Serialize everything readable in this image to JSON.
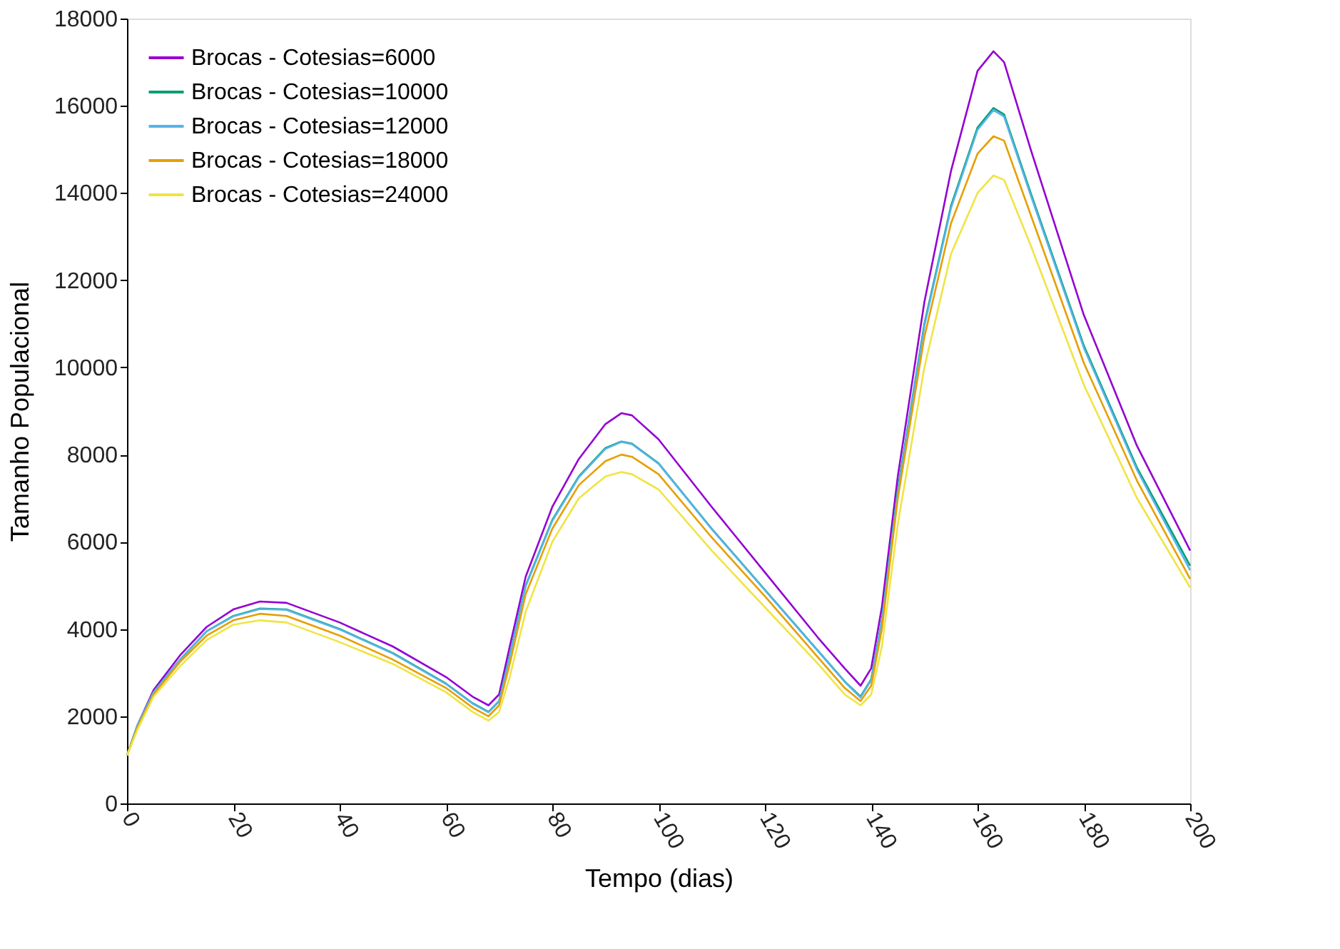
{
  "chart_data": {
    "type": "line",
    "xlabel": "Tempo (dias)",
    "ylabel": "Tamanho Populacional",
    "x": [
      0,
      2,
      5,
      10,
      15,
      20,
      25,
      30,
      40,
      50,
      60,
      65,
      68,
      70,
      72,
      75,
      80,
      85,
      90,
      93,
      95,
      100,
      110,
      120,
      130,
      135,
      138,
      140,
      142,
      145,
      150,
      155,
      160,
      163,
      165,
      170,
      180,
      190,
      200
    ],
    "series": [
      {
        "name": "Brocas - Cotesias=6000",
        "color": "#9400d3",
        "values": [
          1100,
          1800,
          2600,
          3400,
          4050,
          4450,
          4630,
          4600,
          4150,
          3600,
          2900,
          2450,
          2250,
          2500,
          3600,
          5200,
          6800,
          7900,
          8700,
          8950,
          8900,
          8350,
          6800,
          5300,
          3800,
          3100,
          2700,
          3100,
          4500,
          7500,
          11500,
          14500,
          16800,
          17250,
          17000,
          15000,
          11200,
          8200,
          5800
        ]
      },
      {
        "name": "Brocas - Cotesias=10000",
        "color": "#009e73",
        "values": [
          1100,
          1800,
          2550,
          3300,
          3950,
          4300,
          4470,
          4450,
          4000,
          3450,
          2750,
          2300,
          2100,
          2350,
          3400,
          5000,
          6500,
          7500,
          8150,
          8300,
          8250,
          7800,
          6300,
          4900,
          3500,
          2800,
          2450,
          2850,
          4200,
          7200,
          11000,
          13700,
          15500,
          15950,
          15800,
          14000,
          10500,
          7700,
          5450
        ]
      },
      {
        "name": "Brocas - Cotesias=12000",
        "color": "#56b4e9",
        "values": [
          1100,
          1800,
          2550,
          3300,
          3950,
          4290,
          4460,
          4440,
          3990,
          3440,
          2740,
          2290,
          2090,
          2340,
          3380,
          4980,
          6480,
          7480,
          8130,
          8290,
          8240,
          7790,
          6290,
          4890,
          3490,
          2790,
          2430,
          2830,
          4180,
          7150,
          10950,
          13650,
          15450,
          15900,
          15750,
          13950,
          10450,
          7650,
          5350
        ]
      },
      {
        "name": "Brocas - Cotesias=18000",
        "color": "#e69f00",
        "values": [
          1100,
          1750,
          2500,
          3250,
          3850,
          4200,
          4350,
          4300,
          3850,
          3300,
          2650,
          2200,
          2000,
          2250,
          3200,
          4800,
          6300,
          7300,
          7850,
          8000,
          7950,
          7550,
          6100,
          4750,
          3350,
          2650,
          2350,
          2700,
          4000,
          7000,
          10700,
          13300,
          14900,
          15300,
          15200,
          13500,
          10100,
          7400,
          5150
        ]
      },
      {
        "name": "Brocas - Cotesias=24000",
        "color": "#f0e442",
        "values": [
          1100,
          1700,
          2450,
          3150,
          3750,
          4100,
          4200,
          4150,
          3700,
          3200,
          2550,
          2100,
          1900,
          2100,
          2900,
          4400,
          6000,
          7000,
          7500,
          7600,
          7550,
          7200,
          5800,
          4500,
          3200,
          2500,
          2250,
          2500,
          3600,
          6400,
          10000,
          12600,
          14000,
          14400,
          14300,
          12800,
          9600,
          7000,
          4950
        ]
      }
    ],
    "xlim": [
      0,
      200
    ],
    "xticks": [
      0,
      20,
      40,
      60,
      80,
      100,
      120,
      140,
      160,
      180,
      200
    ],
    "ylim": [
      0,
      18000
    ],
    "yticks": [
      0,
      2000,
      4000,
      6000,
      8000,
      10000,
      12000,
      14000,
      16000,
      18000
    ],
    "grid": false,
    "legend": "top left",
    "marker": "none",
    "line_style": "solid"
  }
}
